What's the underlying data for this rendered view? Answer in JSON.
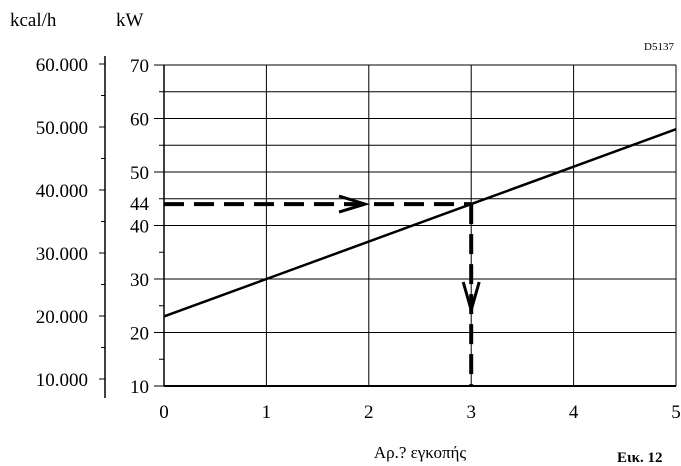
{
  "chart_data": {
    "type": "line",
    "code": "D5137",
    "figure_label": "Εικ. 12",
    "xlabel": "Αρ.? εγκοπής",
    "xlim": [
      0,
      5
    ],
    "x_ticks": [
      "0",
      "1",
      "2",
      "3",
      "4",
      "5"
    ],
    "y_right": {
      "unit": "kW",
      "ylim": [
        10,
        70
      ],
      "ticks": [
        "10",
        "20",
        "30",
        "40",
        "50",
        "60",
        "70"
      ],
      "major_extra": [
        45,
        55,
        65
      ],
      "highlight_label": "44"
    },
    "y_left": {
      "unit": "kcal/h",
      "ticks": [
        "10.000",
        "20.000",
        "30.000",
        "40.000",
        "50.000",
        "60.000"
      ]
    },
    "series": [
      {
        "x": [
          0,
          1,
          2,
          3,
          4,
          5
        ],
        "y": [
          23,
          30,
          37,
          44,
          51,
          58
        ]
      }
    ],
    "annotation": {
      "x": 3,
      "y": 44
    }
  }
}
